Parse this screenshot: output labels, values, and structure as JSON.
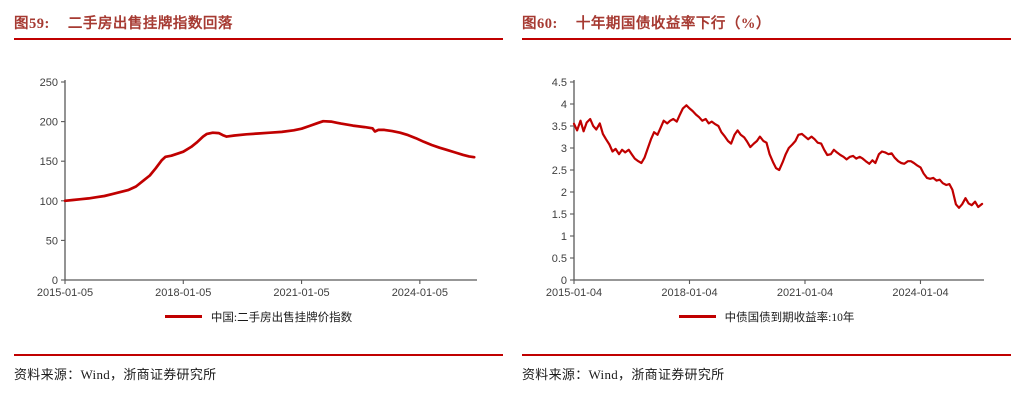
{
  "colors": {
    "accent_red": "#c00000",
    "title_red": "#a63a32",
    "axis": "#595959",
    "tick_text": "#3f3f3f",
    "text": "#1a1a1a"
  },
  "source_line": "资料来源：Wind，浙商证券研究所",
  "chart_data": [
    {
      "type": "line",
      "fig_no": "图59:",
      "title": "二手房出售挂牌指数回落",
      "legend": "中国:二手房出售挂牌价指数",
      "x_unit": "years since 2015-01-05",
      "xlim": [
        0,
        10.45
      ],
      "ylim": [
        0,
        250
      ],
      "grid": false,
      "legend_position": "bottom",
      "line_color": "#c00000",
      "y_tick_vals": [
        0,
        50,
        100,
        150,
        200,
        250
      ],
      "y_tick_labels": [
        "0",
        "50",
        "100",
        "150",
        "200",
        "250"
      ],
      "x_ticks": [
        {
          "pos": 0,
          "label": "2015-01-05"
        },
        {
          "pos": 3,
          "label": "2018-01-05"
        },
        {
          "pos": 6,
          "label": "2021-01-05"
        },
        {
          "pos": 9,
          "label": "2024-01-05"
        }
      ],
      "series": [
        {
          "name": "中国:二手房出售挂牌价指数",
          "points": [
            [
              0,
              100
            ],
            [
              0.2,
              101
            ],
            [
              0.4,
              102
            ],
            [
              0.6,
              103
            ],
            [
              0.8,
              104.5
            ],
            [
              1.0,
              106
            ],
            [
              1.2,
              108.5
            ],
            [
              1.4,
              111
            ],
            [
              1.6,
              113.5
            ],
            [
              1.8,
              118
            ],
            [
              2.0,
              126
            ],
            [
              2.15,
              132
            ],
            [
              2.3,
              141
            ],
            [
              2.45,
              151
            ],
            [
              2.55,
              155.5
            ],
            [
              2.7,
              157
            ],
            [
              2.85,
              159.5
            ],
            [
              3.0,
              162
            ],
            [
              3.2,
              168
            ],
            [
              3.35,
              174
            ],
            [
              3.5,
              181
            ],
            [
              3.6,
              184.5
            ],
            [
              3.75,
              186
            ],
            [
              3.9,
              185.5
            ],
            [
              4.0,
              183
            ],
            [
              4.1,
              181
            ],
            [
              4.3,
              182.5
            ],
            [
              4.6,
              184
            ],
            [
              4.9,
              185
            ],
            [
              5.2,
              186
            ],
            [
              5.5,
              187
            ],
            [
              5.8,
              189
            ],
            [
              6.0,
              191
            ],
            [
              6.2,
              194.5
            ],
            [
              6.4,
              198
            ],
            [
              6.55,
              200.5
            ],
            [
              6.75,
              200
            ],
            [
              6.9,
              198.5
            ],
            [
              7.0,
              197.5
            ],
            [
              7.3,
              195
            ],
            [
              7.6,
              193
            ],
            [
              7.8,
              191.5
            ],
            [
              7.86,
              187.5
            ],
            [
              7.95,
              189.5
            ],
            [
              8.1,
              189.5
            ],
            [
              8.3,
              188
            ],
            [
              8.5,
              186
            ],
            [
              8.7,
              183
            ],
            [
              8.9,
              179
            ],
            [
              9.1,
              174.5
            ],
            [
              9.3,
              170.5
            ],
            [
              9.5,
              167
            ],
            [
              9.7,
              164
            ],
            [
              9.9,
              161
            ],
            [
              10.1,
              158
            ],
            [
              10.25,
              156
            ],
            [
              10.38,
              155
            ]
          ]
        }
      ]
    },
    {
      "type": "line",
      "fig_no": "图60:",
      "title": "十年期国债收益率下行（%）",
      "legend": "中债国债到期收益率:10年",
      "x_unit": "years since 2015-01-04",
      "xlim": [
        0,
        10.65
      ],
      "ylim": [
        0,
        4.5
      ],
      "grid": false,
      "legend_position": "bottom",
      "line_color": "#c00000",
      "y_tick_vals": [
        0,
        0.5,
        1,
        1.5,
        2,
        2.5,
        3,
        3.5,
        4,
        4.5
      ],
      "y_tick_labels": [
        "0",
        "0.5",
        "1",
        "1.5",
        "2",
        "2.5",
        "3",
        "3.5",
        "4",
        "4.5"
      ],
      "x_ticks": [
        {
          "pos": 0,
          "label": "2015-01-04"
        },
        {
          "pos": 3,
          "label": "2018-01-04"
        },
        {
          "pos": 6,
          "label": "2021-01-04"
        },
        {
          "pos": 9,
          "label": "2024-01-04"
        }
      ],
      "series": [
        {
          "name": "中债国债到期收益率:10年",
          "points": [
            [
              0,
              3.55
            ],
            [
              0.08,
              3.4
            ],
            [
              0.17,
              3.62
            ],
            [
              0.25,
              3.38
            ],
            [
              0.33,
              3.58
            ],
            [
              0.42,
              3.66
            ],
            [
              0.5,
              3.5
            ],
            [
              0.58,
              3.42
            ],
            [
              0.67,
              3.56
            ],
            [
              0.75,
              3.32
            ],
            [
              0.83,
              3.2
            ],
            [
              0.92,
              3.08
            ],
            [
              1.0,
              2.92
            ],
            [
              1.08,
              2.98
            ],
            [
              1.17,
              2.86
            ],
            [
              1.25,
              2.96
            ],
            [
              1.33,
              2.9
            ],
            [
              1.42,
              2.96
            ],
            [
              1.5,
              2.86
            ],
            [
              1.58,
              2.76
            ],
            [
              1.67,
              2.7
            ],
            [
              1.75,
              2.66
            ],
            [
              1.83,
              2.78
            ],
            [
              1.92,
              3.0
            ],
            [
              2.0,
              3.2
            ],
            [
              2.08,
              3.36
            ],
            [
              2.17,
              3.3
            ],
            [
              2.25,
              3.46
            ],
            [
              2.33,
              3.62
            ],
            [
              2.42,
              3.56
            ],
            [
              2.5,
              3.62
            ],
            [
              2.58,
              3.66
            ],
            [
              2.67,
              3.6
            ],
            [
              2.75,
              3.76
            ],
            [
              2.83,
              3.9
            ],
            [
              2.92,
              3.97
            ],
            [
              3.0,
              3.9
            ],
            [
              3.08,
              3.84
            ],
            [
              3.17,
              3.76
            ],
            [
              3.25,
              3.7
            ],
            [
              3.33,
              3.62
            ],
            [
              3.42,
              3.66
            ],
            [
              3.5,
              3.56
            ],
            [
              3.58,
              3.6
            ],
            [
              3.67,
              3.54
            ],
            [
              3.75,
              3.5
            ],
            [
              3.83,
              3.36
            ],
            [
              3.92,
              3.26
            ],
            [
              4.0,
              3.16
            ],
            [
              4.08,
              3.1
            ],
            [
              4.17,
              3.3
            ],
            [
              4.25,
              3.4
            ],
            [
              4.33,
              3.3
            ],
            [
              4.42,
              3.24
            ],
            [
              4.5,
              3.14
            ],
            [
              4.58,
              3.02
            ],
            [
              4.67,
              3.1
            ],
            [
              4.75,
              3.16
            ],
            [
              4.83,
              3.26
            ],
            [
              4.92,
              3.16
            ],
            [
              5.0,
              3.12
            ],
            [
              5.08,
              2.86
            ],
            [
              5.17,
              2.68
            ],
            [
              5.25,
              2.54
            ],
            [
              5.33,
              2.5
            ],
            [
              5.42,
              2.68
            ],
            [
              5.5,
              2.86
            ],
            [
              5.58,
              3.0
            ],
            [
              5.67,
              3.08
            ],
            [
              5.75,
              3.16
            ],
            [
              5.83,
              3.3
            ],
            [
              5.92,
              3.32
            ],
            [
              6.0,
              3.26
            ],
            [
              6.08,
              3.2
            ],
            [
              6.17,
              3.26
            ],
            [
              6.25,
              3.2
            ],
            [
              6.33,
              3.12
            ],
            [
              6.42,
              3.1
            ],
            [
              6.5,
              2.96
            ],
            [
              6.58,
              2.84
            ],
            [
              6.67,
              2.86
            ],
            [
              6.75,
              2.96
            ],
            [
              6.83,
              2.9
            ],
            [
              6.92,
              2.84
            ],
            [
              7.0,
              2.8
            ],
            [
              7.08,
              2.74
            ],
            [
              7.17,
              2.8
            ],
            [
              7.25,
              2.82
            ],
            [
              7.33,
              2.76
            ],
            [
              7.42,
              2.8
            ],
            [
              7.5,
              2.76
            ],
            [
              7.58,
              2.7
            ],
            [
              7.67,
              2.64
            ],
            [
              7.75,
              2.72
            ],
            [
              7.83,
              2.66
            ],
            [
              7.92,
              2.86
            ],
            [
              8.0,
              2.92
            ],
            [
              8.08,
              2.9
            ],
            [
              8.17,
              2.86
            ],
            [
              8.25,
              2.88
            ],
            [
              8.33,
              2.78
            ],
            [
              8.42,
              2.7
            ],
            [
              8.5,
              2.66
            ],
            [
              8.58,
              2.64
            ],
            [
              8.67,
              2.7
            ],
            [
              8.75,
              2.7
            ],
            [
              8.83,
              2.66
            ],
            [
              8.92,
              2.6
            ],
            [
              9.0,
              2.56
            ],
            [
              9.08,
              2.42
            ],
            [
              9.17,
              2.32
            ],
            [
              9.25,
              2.3
            ],
            [
              9.33,
              2.32
            ],
            [
              9.42,
              2.26
            ],
            [
              9.5,
              2.28
            ],
            [
              9.58,
              2.2
            ],
            [
              9.67,
              2.16
            ],
            [
              9.75,
              2.18
            ],
            [
              9.83,
              2.05
            ],
            [
              9.92,
              1.72
            ],
            [
              10.0,
              1.64
            ],
            [
              10.08,
              1.72
            ],
            [
              10.17,
              1.86
            ],
            [
              10.25,
              1.74
            ],
            [
              10.33,
              1.7
            ],
            [
              10.42,
              1.78
            ],
            [
              10.5,
              1.66
            ],
            [
              10.6,
              1.73
            ]
          ]
        }
      ]
    }
  ]
}
